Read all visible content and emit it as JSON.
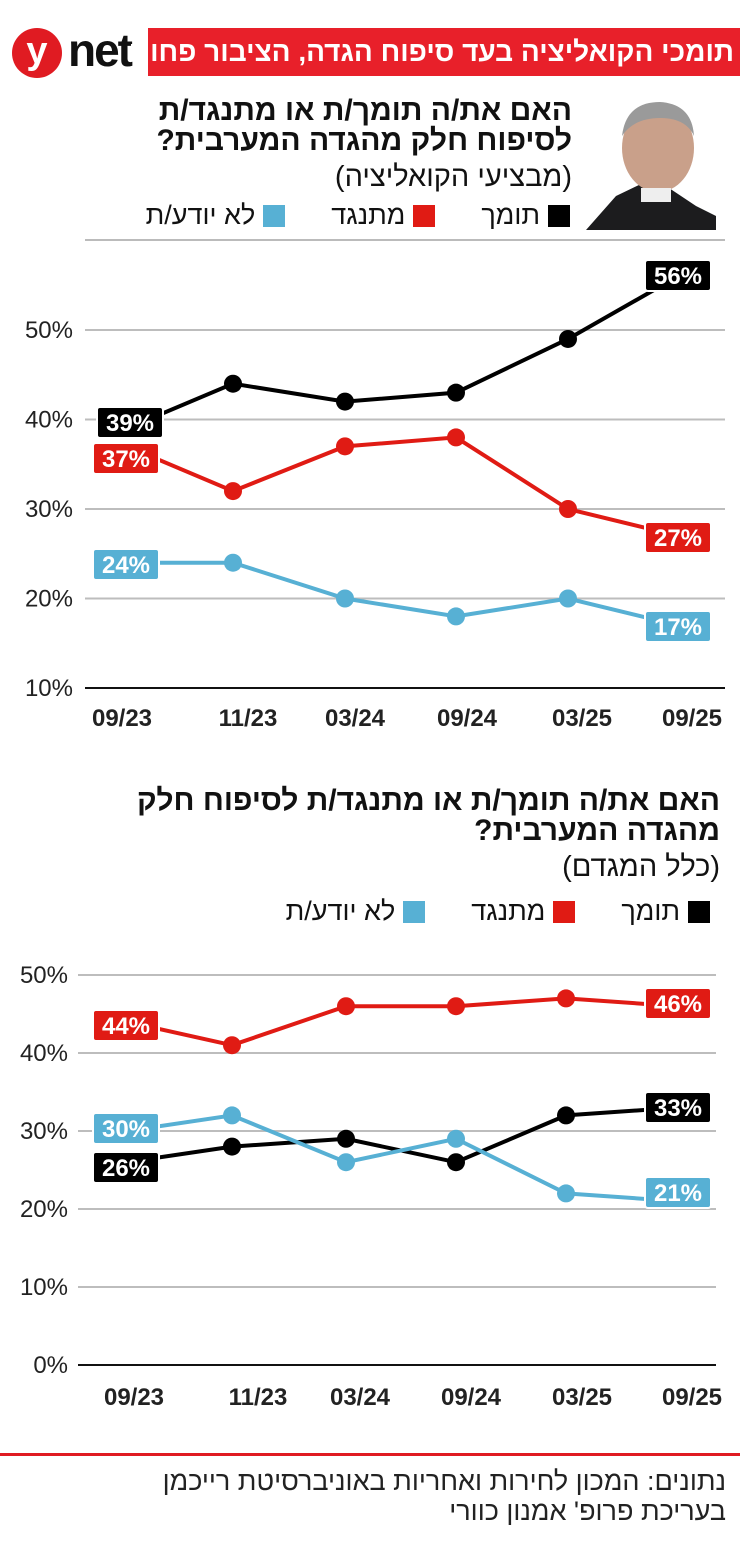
{
  "header": {
    "logo_letter": "y",
    "logo_text": "net",
    "headline": "תומכי הקואליציה בעד סיפוח הגדה, הציבור פחות"
  },
  "colors": {
    "support": "#000000",
    "oppose": "#e01b14",
    "dont_know": "#57b0d4",
    "brand": "#e8202a"
  },
  "charts": [
    {
      "title": "האם את/ה תומך/ת או מתנגד/ת לסיפוח חלק מהגדה המערבית?",
      "subtitle": "(מבציעי הקואליציה)",
      "legend": [
        "תומך",
        "מתנגד",
        "לא יודע/ת"
      ]
    },
    {
      "title": "האם את/ה תומך/ת או מתנגד/ת לסיפוח חלק מהגדה המערבית?",
      "subtitle": "(כלל המגדם)",
      "legend": [
        "תומך",
        "מתנגד",
        "לא יודע/ת"
      ]
    }
  ],
  "chart_data": [
    {
      "type": "line",
      "categories": [
        "09/23",
        "11/23",
        "03/24",
        "09/24",
        "03/25",
        "09/25"
      ],
      "yticks": [
        "10%",
        "20%",
        "30%",
        "40%",
        "50%"
      ],
      "ylim": [
        10,
        60
      ],
      "grid": true,
      "legend": "top",
      "series": [
        {
          "name": "תומך",
          "color": "#000000",
          "values": [
            39,
            44,
            42,
            43,
            49,
            56
          ],
          "labels": [
            "39%",
            "56%"
          ]
        },
        {
          "name": "מתנגד",
          "color": "#e01b14",
          "values": [
            37,
            32,
            37,
            38,
            30,
            27
          ],
          "labels": [
            "37%",
            "27%"
          ]
        },
        {
          "name": "לא יודע/ת",
          "color": "#57b0d4",
          "values": [
            24,
            24,
            20,
            18,
            20,
            17
          ],
          "labels": [
            "24%",
            "17%"
          ]
        }
      ]
    },
    {
      "type": "line",
      "categories": [
        "09/23",
        "11/23",
        "03/24",
        "09/24",
        "03/25",
        "09/25"
      ],
      "yticks": [
        "0%",
        "10%",
        "20%",
        "30%",
        "40%",
        "50%"
      ],
      "ylim": [
        0,
        50
      ],
      "grid": true,
      "legend": "top",
      "series": [
        {
          "name": "תומך",
          "color": "#000000",
          "values": [
            26,
            28,
            29,
            26,
            32,
            33
          ],
          "labels": [
            "26%",
            "33%"
          ]
        },
        {
          "name": "מתנגד",
          "color": "#e01b14",
          "values": [
            44,
            41,
            46,
            46,
            47,
            46
          ],
          "labels": [
            "44%",
            "46%"
          ]
        },
        {
          "name": "לא יודע/ת",
          "color": "#57b0d4",
          "values": [
            30,
            32,
            26,
            29,
            22,
            21
          ],
          "labels": [
            "30%",
            "21%"
          ]
        }
      ]
    }
  ],
  "footer": {
    "line1": "נתונים: המכון לחירות ואחריות באוניברסיטת רייכמן",
    "line2": "בעריכת פרופ' אמנון כוורי"
  }
}
